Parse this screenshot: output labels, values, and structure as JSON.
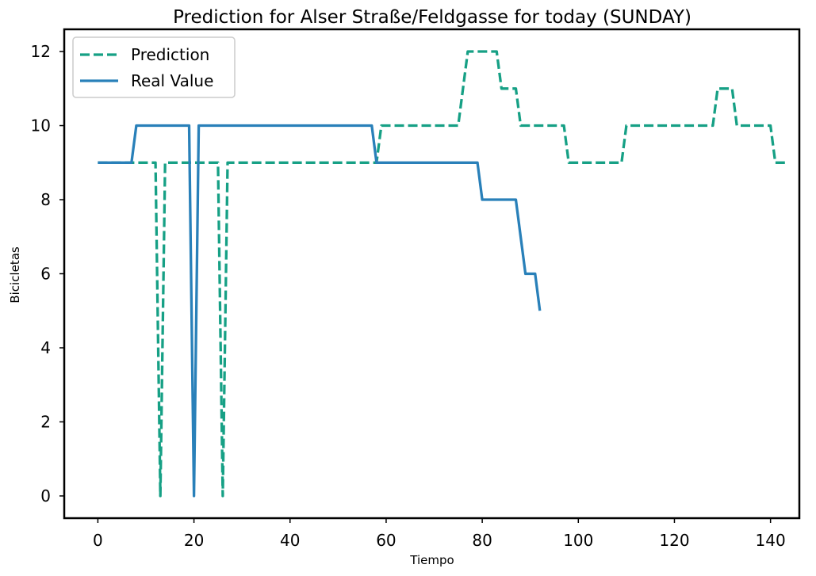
{
  "chart_data": {
    "type": "line",
    "title": "Prediction for Alser Straße/Feldgasse for today (SUNDAY)",
    "xlabel": "Tiempo",
    "ylabel": "Bicicletas",
    "xlim": [
      -7,
      146
    ],
    "ylim": [
      -0.6,
      12.6
    ],
    "xticks": [
      0,
      20,
      40,
      60,
      80,
      100,
      120,
      140
    ],
    "yticks": [
      0,
      2,
      4,
      6,
      8,
      10,
      12
    ],
    "grid": false,
    "legend_position": "top-left",
    "series": [
      {
        "name": "Prediction",
        "style": "dashed",
        "color": "#16a085",
        "x": [
          0,
          12,
          13,
          14,
          25,
          26,
          27,
          58,
          59,
          75,
          77,
          83,
          84,
          86,
          87,
          88,
          97,
          98,
          109,
          110,
          128,
          129,
          132,
          133,
          140,
          141,
          143
        ],
        "y": [
          9,
          9,
          0,
          9,
          9,
          0,
          9,
          9,
          10,
          10,
          12,
          12,
          11,
          11,
          11,
          10,
          10,
          9,
          9,
          10,
          10,
          11,
          11,
          10,
          10,
          9,
          9
        ]
      },
      {
        "name": "Real Value",
        "style": "solid",
        "color": "#2980b9",
        "x": [
          0,
          7,
          8,
          19,
          20,
          21,
          57,
          58,
          79,
          80,
          87,
          89,
          91,
          92
        ],
        "y": [
          9,
          9,
          10,
          10,
          0,
          10,
          10,
          9,
          9,
          8,
          8,
          6,
          6,
          5
        ]
      }
    ]
  }
}
